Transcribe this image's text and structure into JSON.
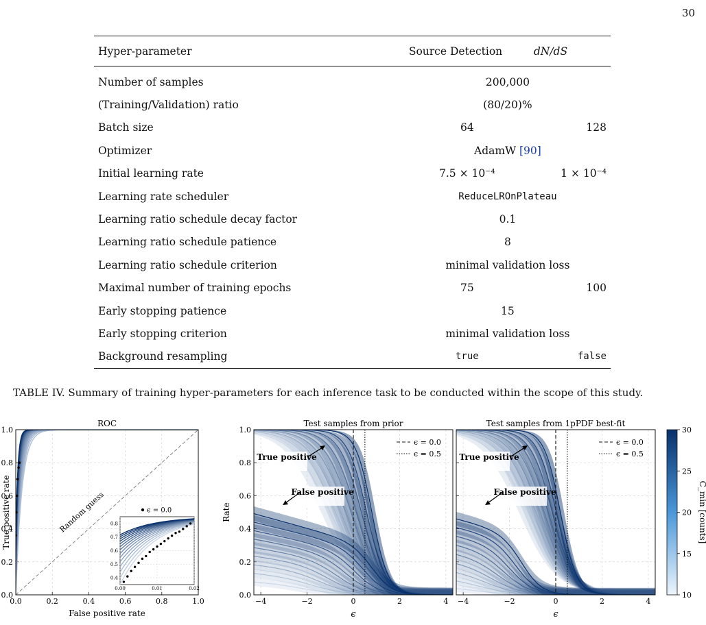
{
  "page": {
    "number": "30"
  },
  "table": {
    "headers": [
      "Hyper-parameter",
      "Source Detection",
      "dN/dS"
    ],
    "rows": [
      {
        "param": "Number of samples",
        "span": "200,000"
      },
      {
        "param": "(Training/Validation) ratio",
        "span": "(80/20)%"
      },
      {
        "param": "Batch size",
        "source": "64",
        "dnds": "128"
      },
      {
        "param": "Optimizer",
        "span": "AdamW",
        "cite": "[90]"
      },
      {
        "param": "Initial learning rate",
        "source": "7.5 × 10⁻⁴",
        "dnds": "1 × 10⁻⁴"
      },
      {
        "param": "Learning rate scheduler",
        "span": "ReduceLROnPlateau",
        "mono": true
      },
      {
        "param": "Learning ratio schedule decay factor",
        "span": "0.1"
      },
      {
        "param": "Learning ratio schedule patience",
        "span": "8"
      },
      {
        "param": "Learning ratio schedule criterion",
        "span": "minimal validation loss"
      },
      {
        "param": "Maximal number of training epochs",
        "source": "75",
        "dnds": "100"
      },
      {
        "param": "Early stopping patience",
        "span": "15"
      },
      {
        "param": "Early stopping criterion",
        "span": "minimal validation loss"
      },
      {
        "param": "Background resampling",
        "source": "true",
        "dnds": "false",
        "mono": true
      }
    ]
  },
  "caption": "TABLE IV. Summary of training hyper-parameters for each inference task to be conducted within the scope of this study.",
  "chart_data": [
    {
      "type": "line",
      "title": "ROC",
      "xlabel": "False positive rate",
      "ylabel": "True positive rate",
      "xlim": [
        0,
        1
      ],
      "ylim": [
        0,
        1
      ],
      "xticks": [
        "0.0",
        "0.2",
        "0.4",
        "0.6",
        "0.8",
        "1.0"
      ],
      "yticks": [
        "0.0",
        "0.2",
        "0.4",
        "0.6",
        "0.8",
        "1.0"
      ],
      "diagonal_label": "Random guess",
      "inset": {
        "legend": "ϵ = 0.0",
        "xlim": [
          0,
          0.02
        ],
        "ylim": [
          0.35,
          0.85
        ],
        "xticks": [
          "0.00",
          "0.01",
          "0.02"
        ],
        "yticks": [
          "0.4",
          "0.5",
          "0.6",
          "0.7",
          "0.8"
        ],
        "points": [
          [
            0.001,
            0.37
          ],
          [
            0.002,
            0.41
          ],
          [
            0.003,
            0.45
          ],
          [
            0.004,
            0.48
          ],
          [
            0.005,
            0.51
          ],
          [
            0.006,
            0.54
          ],
          [
            0.007,
            0.56
          ],
          [
            0.008,
            0.59
          ],
          [
            0.009,
            0.61
          ],
          [
            0.01,
            0.63
          ],
          [
            0.011,
            0.65
          ],
          [
            0.012,
            0.67
          ],
          [
            0.013,
            0.69
          ],
          [
            0.014,
            0.71
          ],
          [
            0.015,
            0.73
          ],
          [
            0.016,
            0.74
          ],
          [
            0.017,
            0.76
          ],
          [
            0.018,
            0.78
          ],
          [
            0.019,
            0.8
          ]
        ]
      }
    },
    {
      "type": "line",
      "title": "Test samples from prior",
      "xlabel": "ϵ",
      "ylabel": "Rate",
      "xlim": [
        -4.3,
        4.3
      ],
      "ylim": [
        0,
        1
      ],
      "xticks": [
        "−4",
        "−2",
        "0",
        "2",
        "4"
      ],
      "yticks": [
        "0.0",
        "0.2",
        "0.4",
        "0.6",
        "0.8",
        "1.0"
      ],
      "legend": [
        "ϵ = 0.0",
        "ϵ = 0.5"
      ],
      "annotations": [
        "True positive",
        "False positive"
      ],
      "vlines": [
        0.0,
        0.5
      ],
      "tp_dark": {
        "center": 0.8,
        "width": 0.34
      },
      "fp_dark": {
        "y_at_minus4": 0.46,
        "center": 0.9,
        "width": 0.3
      }
    },
    {
      "type": "line",
      "title": "Test samples from 1pPDF best-fit",
      "xlabel": "ϵ",
      "xlim": [
        -4.3,
        4.3
      ],
      "ylim": [
        0,
        1
      ],
      "xticks": [
        "−4",
        "−2",
        "0",
        "2",
        "4"
      ],
      "legend": [
        "ϵ = 0.0",
        "ϵ = 0.5"
      ],
      "annotations": [
        "True positive",
        "False positive"
      ],
      "vlines": [
        0.0,
        0.5
      ],
      "tp_dark": {
        "center": 0.2,
        "width": 0.55
      },
      "fp_dark": {
        "y_at_minus4": 0.44,
        "center": -1.4,
        "width": 0.45
      }
    }
  ],
  "colorbar": {
    "label": "C_min [counts]",
    "ticks": [
      "10",
      "15",
      "20",
      "25",
      "30"
    ],
    "range": [
      10,
      30
    ],
    "colors": [
      "#eef5fd",
      "#08306b"
    ]
  },
  "colors": {
    "band_light": "#deebf7",
    "band_mid": "#6baed6",
    "line_dark": "#08306b",
    "accent": "#1f78d1"
  }
}
